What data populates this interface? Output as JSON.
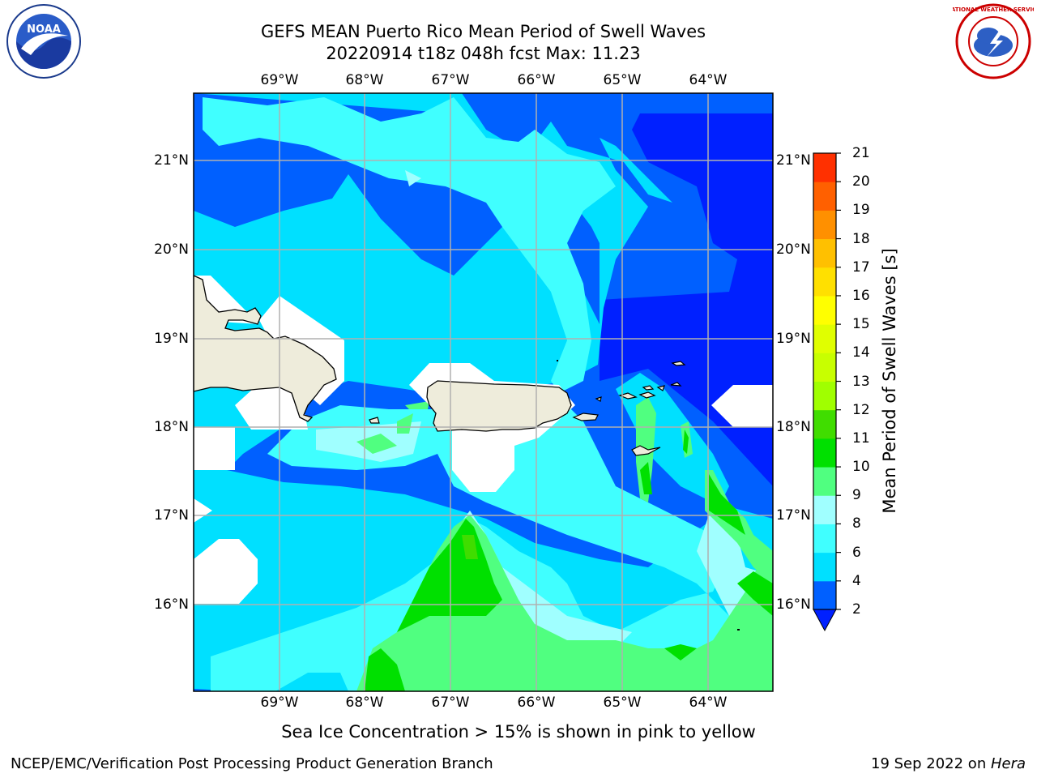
{
  "title": {
    "line1": "GEFS MEAN Puerto Rico Mean Period of Swell Waves",
    "line2": "20220914 t18z 048h fcst   Max: 11.23"
  },
  "logos": {
    "noaa_text": "NOAA",
    "nws_text": "NATIONAL WEATHER SERVICE"
  },
  "map": {
    "longitude_labels": [
      "69°W",
      "68°W",
      "67°W",
      "66°W",
      "65°W",
      "64°W"
    ],
    "latitude_labels": [
      "21°N",
      "20°N",
      "19°N",
      "18°N",
      "17°N",
      "16°N"
    ],
    "land_color": "#eeecdb",
    "grid_color": "#b0b0b0",
    "max_value": 11.23
  },
  "colorbar": {
    "label": "Mean Period of Swell Waves [s]",
    "ticks": [
      "21",
      "20",
      "19",
      "18",
      "17",
      "16",
      "15",
      "14",
      "13",
      "12",
      "11",
      "10",
      "9",
      "8",
      "6",
      "4",
      "2"
    ],
    "levels": [
      2,
      4,
      6,
      8,
      9,
      10,
      11,
      12,
      13,
      14,
      15,
      16,
      17,
      18,
      19,
      20,
      21
    ],
    "colors": [
      "#0060ff",
      "#00e0ff",
      "#40ffff",
      "#a0ffff",
      "#50ff80",
      "#00e000",
      "#40dd00",
      "#a0ff00",
      "#c8ff00",
      "#e0ff00",
      "#ffff00",
      "#ffe000",
      "#ffc000",
      "#ff9000",
      "#ff6000",
      "#ff3000"
    ],
    "under_color": "#0020ff"
  },
  "subtitle": "Sea Ice Concentration > 15% is shown in pink to yellow",
  "footer": {
    "left": "NCEP/EMC/Verification Post Processing Product Generation Branch",
    "date": "19 Sep 2022 on ",
    "host": "Hera"
  }
}
